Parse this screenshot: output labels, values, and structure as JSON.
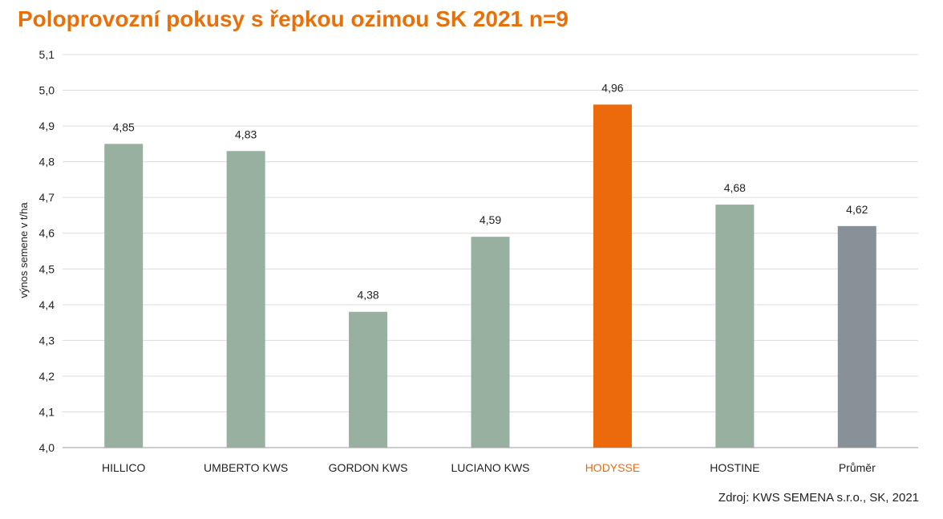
{
  "chart_data": {
    "type": "bar",
    "title": "Poloprovozní pokusy s řepkou ozimou SK 2021 n=9",
    "ylabel": "výnos semene v t/ha",
    "xlabel": "",
    "ylim": [
      4.0,
      5.1
    ],
    "ytick_step": 0.1,
    "yticks": [
      "4,0",
      "4,1",
      "4,2",
      "4,3",
      "4,4",
      "4,5",
      "4,6",
      "4,7",
      "4,8",
      "4,9",
      "5,0",
      "5,1"
    ],
    "grid": true,
    "categories": [
      "HILLICO",
      "UMBERTO KWS",
      "GORDON KWS",
      "LUCIANO KWS",
      "HODYSSE",
      "HOSTINE",
      "Průměr"
    ],
    "values": [
      4.85,
      4.83,
      4.38,
      4.59,
      4.96,
      4.68,
      4.62
    ],
    "value_labels": [
      "4,85",
      "4,83",
      "4,38",
      "4,59",
      "4,96",
      "4,68",
      "4,62"
    ],
    "colors": [
      "#97b09f",
      "#97b09f",
      "#97b09f",
      "#97b09f",
      "#ec6a0c",
      "#97b09f",
      "#879197"
    ],
    "highlight_label_color": "#ec6a0c",
    "source": "Zdroj: KWS SEMENA s.r.o., SK, 2021"
  }
}
